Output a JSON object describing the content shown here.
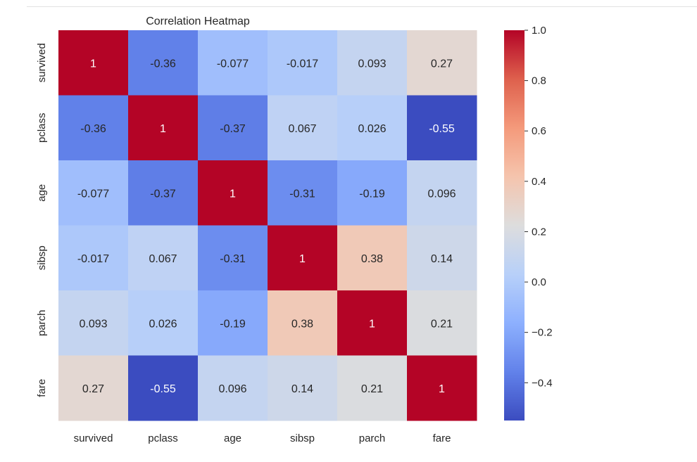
{
  "chart_data": {
    "type": "heatmap",
    "title": "Correlation Heatmap",
    "xlabel": "",
    "ylabel": "",
    "x_categories": [
      "survived",
      "pclass",
      "age",
      "sibsp",
      "parch",
      "fare"
    ],
    "y_categories": [
      "survived",
      "pclass",
      "age",
      "sibsp",
      "parch",
      "fare"
    ],
    "values": [
      [
        1,
        -0.36,
        -0.077,
        -0.017,
        0.093,
        0.27
      ],
      [
        -0.36,
        1,
        -0.37,
        0.067,
        0.026,
        -0.55
      ],
      [
        -0.077,
        -0.37,
        1,
        -0.31,
        -0.19,
        0.096
      ],
      [
        -0.017,
        0.067,
        -0.31,
        1,
        0.38,
        0.14
      ],
      [
        0.093,
        0.026,
        -0.19,
        0.38,
        1,
        0.21
      ],
      [
        0.27,
        -0.55,
        0.096,
        0.14,
        0.21,
        1
      ]
    ],
    "value_labels": [
      [
        "1",
        "-0.36",
        "-0.077",
        "-0.017",
        "0.093",
        "0.27"
      ],
      [
        "-0.36",
        "1",
        "-0.37",
        "0.067",
        "0.026",
        "-0.55"
      ],
      [
        "-0.077",
        "-0.37",
        "1",
        "-0.31",
        "-0.19",
        "0.096"
      ],
      [
        "-0.017",
        "0.067",
        "-0.31",
        "1",
        "0.38",
        "0.14"
      ],
      [
        "0.093",
        "0.026",
        "-0.19",
        "0.38",
        "1",
        "0.21"
      ],
      [
        "0.27",
        "-0.55",
        "0.096",
        "0.14",
        "0.21",
        "1"
      ]
    ],
    "colormap": "coolwarm",
    "colorbar": {
      "vmin": -0.55,
      "vmax": 1.0,
      "ticks": [
        1.0,
        0.8,
        0.6,
        0.4,
        0.2,
        0.0,
        -0.2,
        -0.4
      ],
      "tick_labels": [
        "1.0",
        "0.8",
        "0.6",
        "0.4",
        "0.2",
        "0.0",
        "−0.2",
        "−0.4"
      ]
    },
    "annotations": true,
    "grid": false,
    "legend": "colorbar-right"
  }
}
